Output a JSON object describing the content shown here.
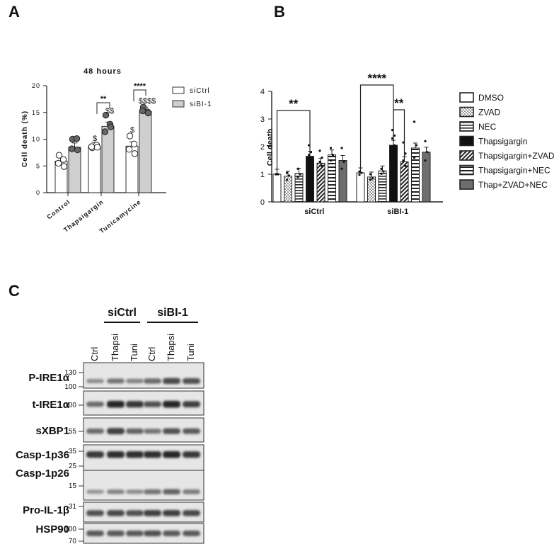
{
  "panel_labels": {
    "a": "A",
    "b": "B",
    "c": "C"
  },
  "chart_data": [
    {
      "type": "bar",
      "panel": "A",
      "title": "48 hours",
      "xlabel": "",
      "ylabel": "Cell death (%)",
      "ylim": [
        0,
        20
      ],
      "yticks": [
        "0",
        "5",
        "10",
        "15",
        "20"
      ],
      "categories": [
        "Control",
        "Thapsigargin",
        "Tunicamycine"
      ],
      "series": [
        {
          "name": "siCtrl",
          "color": "#ffffff",
          "values": [
            5.9,
            8.6,
            8.7
          ],
          "points": [
            [
              7,
              6.2,
              5.5,
              4.9
            ],
            [
              8.4,
              8.9,
              8.6,
              8.5
            ],
            [
              10.6,
              9.1,
              8.1,
              7.3
            ]
          ]
        },
        {
          "name": "siBI-1",
          "color": "#cfcfcf",
          "values": [
            8.5,
            12.4,
            15.2
          ],
          "points": [
            [
              10,
              10.1,
              8.2,
              8
            ],
            [
              14.5,
              12.8,
              11.4,
              12.3
            ],
            [
              16,
              15.1,
              15.3,
              14.9
            ]
          ]
        }
      ],
      "annotations": [
        {
          "text": "**",
          "category": "Thapsigargin"
        },
        {
          "text": "****",
          "category": "Tunicamycine"
        },
        {
          "text": "$",
          "category": "Thapsigargin",
          "series": "siCtrl"
        },
        {
          "text": "$$",
          "category": "Thapsigargin",
          "series": "siBI-1"
        },
        {
          "text": "$",
          "category": "Tunicamycine",
          "series": "siCtrl"
        },
        {
          "text": "$$$$",
          "category": "Tunicamycine",
          "series": "siBI-1"
        }
      ],
      "legend": "right",
      "grid": false
    },
    {
      "type": "bar",
      "panel": "B",
      "title": "",
      "xlabel": "",
      "ylabel": "Cell death",
      "ylim": [
        0,
        4
      ],
      "yticks": [
        "0",
        "1",
        "2",
        "3",
        "4"
      ],
      "categories": [
        "siCtrl",
        "siBI-1"
      ],
      "series": [
        {
          "name": "DMSO",
          "pattern": "white",
          "values": [
            1.0,
            1.05
          ],
          "points": [
            [
              1,
              1,
              1
            ],
            [
              1.1,
              1.05,
              0.98
            ]
          ]
        },
        {
          "name": "ZVAD",
          "pattern": "dots",
          "values": [
            0.93,
            0.9
          ],
          "points": [
            [
              1.05,
              0.95,
              0.8
            ],
            [
              1,
              0.85,
              0.8
            ]
          ]
        },
        {
          "name": "NEC",
          "pattern": "hlines",
          "values": [
            1.03,
            1.12
          ],
          "points": [
            [
              1.2,
              1,
              0.9
            ],
            [
              1.2,
              1.1,
              1.02
            ]
          ]
        },
        {
          "name": "Thapsigargin",
          "pattern": "black",
          "values": [
            1.65,
            2.05
          ],
          "points": [
            [
              2.05,
              1.8,
              1.7,
              1.6,
              1.55
            ],
            [
              2.6,
              2.4,
              2.3,
              2.05,
              1.9
            ]
          ]
        },
        {
          "name": "Thapsigargin+ZVAD",
          "pattern": "diag",
          "values": [
            1.4,
            1.45
          ],
          "points": [
            [
              1.85,
              1.6,
              1.45,
              1.3
            ],
            [
              2.15,
              1.75,
              1.5,
              1.3
            ]
          ]
        },
        {
          "name": "Thapsigargin+NEC",
          "pattern": "hlines2",
          "values": [
            1.7,
            1.95
          ],
          "points": [
            [
              1.95,
              1.7,
              1.5
            ],
            [
              2.9,
              2.05,
              1.6
            ]
          ]
        },
        {
          "name": "Thap+ZVAD+NEC",
          "pattern": "gray",
          "values": [
            1.5,
            1.8
          ],
          "points": [
            [
              1.95,
              1.45,
              1.2
            ],
            [
              2.2,
              1.8,
              1.5
            ]
          ]
        }
      ],
      "annotations": [
        {
          "text": "**",
          "between": [
            "siCtrl DMSO",
            "siCtrl Thapsigargin"
          ]
        },
        {
          "text": "****",
          "between": [
            "siBI-1 DMSO",
            "siBI-1 Thapsigargin"
          ]
        },
        {
          "text": "**",
          "between": [
            "siBI-1 Thapsigargin",
            "siBI-1 Thapsigargin+ZVAD"
          ]
        }
      ],
      "legend": "right",
      "grid": false
    }
  ],
  "western_blot": {
    "group_labels": [
      "siCtrl",
      "siBI-1"
    ],
    "lane_labels": [
      "Ctrl",
      "Thapsi",
      "Tuni",
      "Ctrl",
      "Thapsi",
      "Tuni"
    ],
    "rows": [
      {
        "label": "P-IRE1α",
        "markers": [
          "130",
          "100"
        ],
        "bands": [
          0.35,
          0.5,
          0.4,
          0.55,
          0.75,
          0.7
        ]
      },
      {
        "label": "t-IRE1α",
        "markers": [
          "100"
        ],
        "bands": [
          0.55,
          0.95,
          0.85,
          0.7,
          0.95,
          0.8
        ]
      },
      {
        "label": "sXBP1",
        "markers": [
          "55"
        ],
        "bands": [
          0.55,
          0.8,
          0.6,
          0.5,
          0.7,
          0.65
        ]
      },
      {
        "label": "Casp-1p36",
        "markers": [
          "35"
        ],
        "bands": [
          0.85,
          0.9,
          0.9,
          0.9,
          0.95,
          0.85
        ]
      },
      {
        "label": "Casp-1p26",
        "markers": [
          "25",
          "15"
        ],
        "bands": [
          0.3,
          0.4,
          0.35,
          0.5,
          0.6,
          0.45
        ]
      },
      {
        "label": "Pro-IL-1β",
        "markers": [
          "31"
        ],
        "bands": [
          0.7,
          0.75,
          0.7,
          0.8,
          0.8,
          0.75
        ]
      },
      {
        "label": "HSP90",
        "markers": [
          "100",
          "70"
        ],
        "bands": [
          0.65,
          0.65,
          0.65,
          0.7,
          0.65,
          0.65
        ]
      }
    ]
  }
}
